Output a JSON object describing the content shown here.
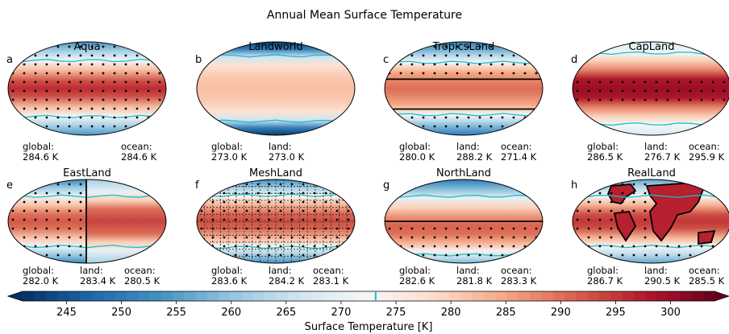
{
  "figure": {
    "title": "Annual Mean Surface Temperature",
    "colorbar_label": "Surface Temperature [K]",
    "colorbar_ticks": [
      "245",
      "250",
      "255",
      "260",
      "265",
      "270",
      "275",
      "280",
      "285",
      "290",
      "295",
      "300"
    ],
    "stat_labels": {
      "global": "global:",
      "land": "land:",
      "ocean": "ocean:"
    }
  },
  "chart_data": {
    "type": "heatmap",
    "title": "Annual Mean Surface Temperature",
    "colorbar": {
      "label": "Surface Temperature [K]",
      "range": [
        241,
        304
      ],
      "ticks": [
        245,
        250,
        255,
        260,
        265,
        270,
        275,
        280,
        285,
        290,
        295,
        300
      ],
      "freezing_line": 273.15,
      "colormap": "RdBu_r"
    },
    "panels": [
      {
        "letter": "a",
        "name": "Aqua",
        "global": "284.6 K",
        "land": null,
        "ocean": "284.6 K"
      },
      {
        "letter": "b",
        "name": "Landworld",
        "global": "273.0 K",
        "land": "273.0 K",
        "ocean": null
      },
      {
        "letter": "c",
        "name": "TropicsLand",
        "global": "280.0 K",
        "land": "288.2 K",
        "ocean": "271.4 K"
      },
      {
        "letter": "d",
        "name": "CapLand",
        "global": "286.5 K",
        "land": "276.7 K",
        "ocean": "295.9 K"
      },
      {
        "letter": "e",
        "name": "EastLand",
        "global": "282.0 K",
        "land": "283.4 K",
        "ocean": "280.5 K"
      },
      {
        "letter": "f",
        "name": "MeshLand",
        "global": "283.6 K",
        "land": "284.2 K",
        "ocean": "283.1 K"
      },
      {
        "letter": "g",
        "name": "NorthLand",
        "global": "282.6 K",
        "land": "281.8 K",
        "ocean": "283.3 K"
      },
      {
        "letter": "h",
        "name": "RealLand",
        "global": "286.7 K",
        "land": "290.5 K",
        "ocean": "285.5 K"
      }
    ]
  }
}
